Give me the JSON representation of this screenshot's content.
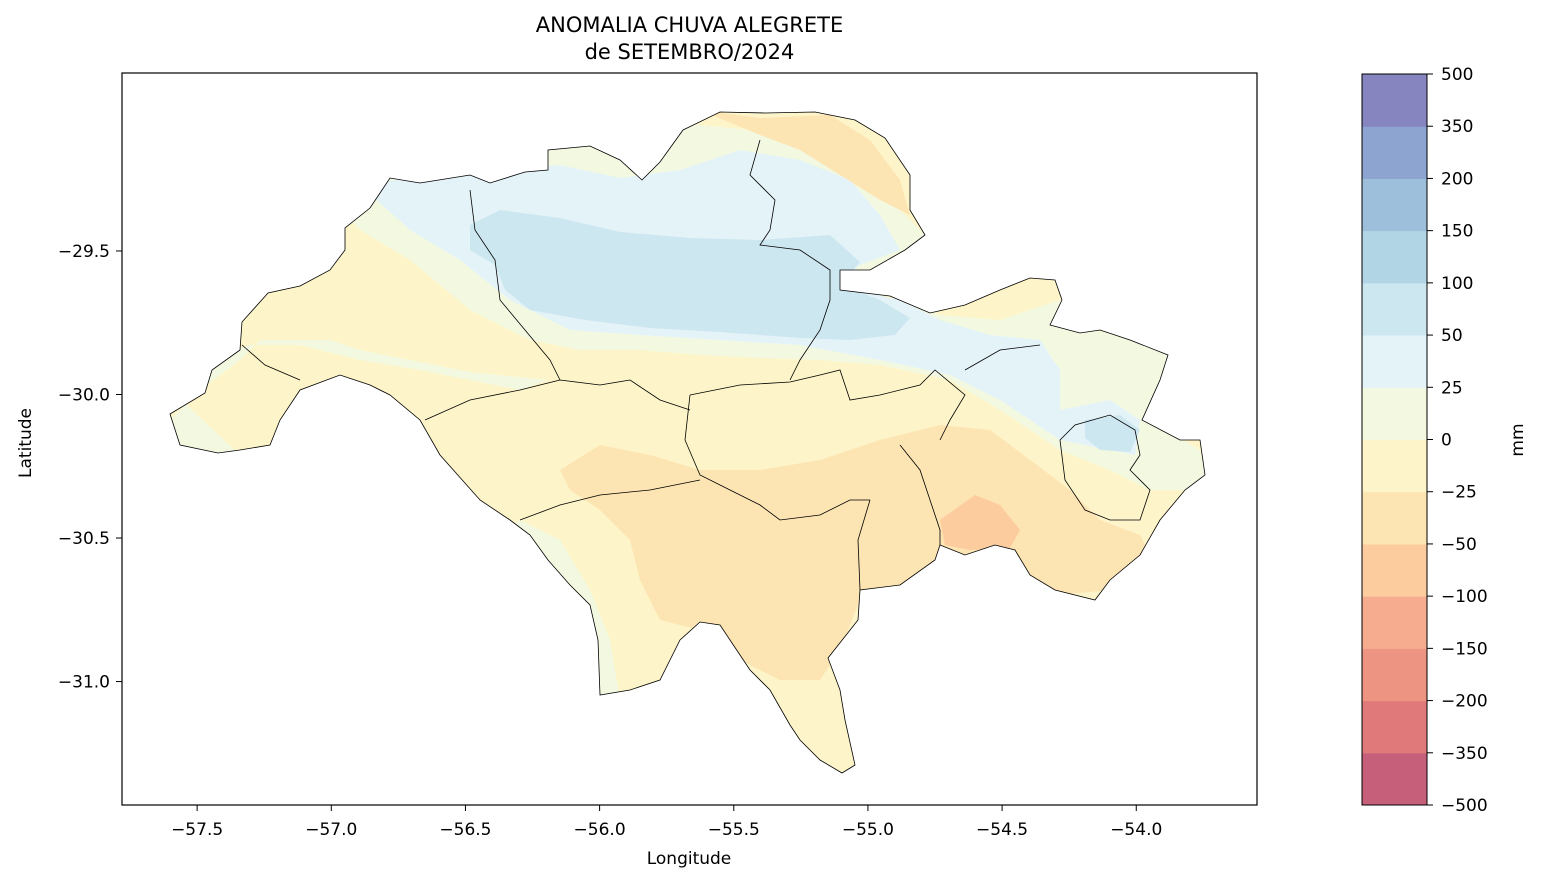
{
  "title": {
    "line1": "ANOMALIA CHUVA ALEGRETE",
    "line2": "de SETEMBRO/2024"
  },
  "chart_data": {
    "type": "heatmap",
    "xlabel": "Longitude",
    "ylabel": "Latitude",
    "xlim": [
      -57.78,
      -53.55
    ],
    "ylim": [
      -31.43,
      -28.88
    ],
    "x_ticks": [
      "−57.5",
      "−57.0",
      "−56.5",
      "−56.0",
      "−55.5",
      "−55.0",
      "−54.5",
      "−54.0"
    ],
    "x_tick_values": [
      -57.5,
      -57.0,
      -56.5,
      -56.0,
      -55.5,
      -55.0,
      -54.5,
      -54.0
    ],
    "y_ticks": [
      "−29.5",
      "−30.0",
      "−30.5",
      "−31.0"
    ],
    "y_tick_values": [
      -29.5,
      -30.0,
      -30.5,
      -31.0
    ],
    "colorbar": {
      "label": "mm",
      "levels": [
        "−500",
        "−350",
        "−200",
        "−150",
        "−100",
        "−50",
        "−25",
        "0",
        "25",
        "50",
        "100",
        "150",
        "200",
        "350",
        "500"
      ],
      "colors": [
        "#c6607a",
        "#e07a7a",
        "#ed9482",
        "#f6ad8f",
        "#fccc9f",
        "#fde4b3",
        "#fdf5c9",
        "#f3f9e1",
        "#e4f3f8",
        "#cde7f0",
        "#b2d5e6",
        "#9ebfdb",
        "#8ca4cf",
        "#8685bf"
      ]
    },
    "anomaly_zones": [
      {
        "range": "−100 to −50",
        "area": "around -54.6, -30.55"
      },
      {
        "range": "−50 to −25",
        "area": "south-central and south-east"
      },
      {
        "range": "−25 to 0",
        "area": "west and center"
      },
      {
        "range": "0 to 25",
        "area": "bands between positive and negative zones"
      },
      {
        "range": "25 to 50",
        "area": "north and north-east"
      },
      {
        "range": "50 to 100",
        "area": "north-central, around -55.5, -29.8"
      }
    ]
  }
}
